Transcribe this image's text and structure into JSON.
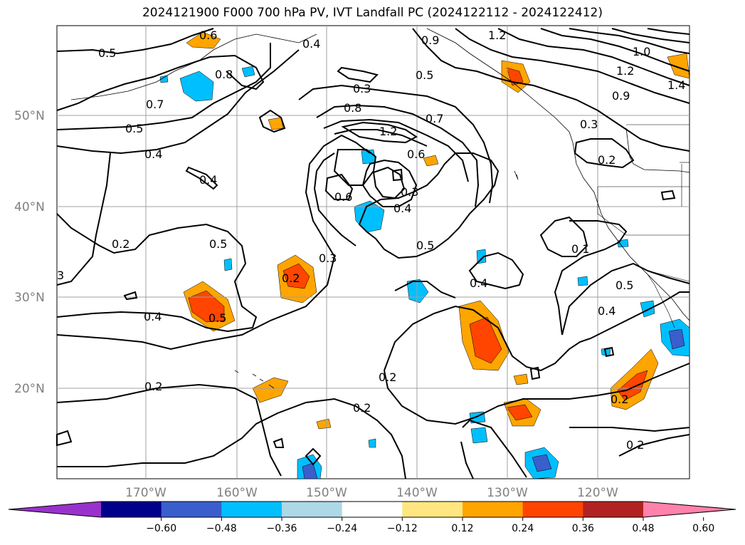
{
  "title": "2024121900 F000 700 hPa PV, IVT Landfall PC (2024122112 - 2024122412)",
  "latitude_labels": [
    "50°N",
    "40°N",
    "30°N",
    "20°N"
  ],
  "longitude_labels": [
    "170°W",
    "160°W",
    "150°W",
    "140°W",
    "130°W",
    "120°W"
  ],
  "contour_labels": [
    "0.5",
    "0.6",
    "0.4",
    "0.7",
    "0.8",
    "0.5",
    "0.4",
    "0.4",
    "0.2",
    "0.5",
    "0.3",
    "0.2",
    "0.4",
    "0.5",
    "0.3",
    "0.8",
    "1.2",
    "0.7",
    "0.6",
    "0.6",
    "0.4",
    "0.3",
    "0.5",
    "0.4",
    "1.2",
    "0.9",
    "0.5",
    "1.0",
    "1.2",
    "0.9",
    "1.4",
    "0.3",
    "0.2",
    "0.1",
    "0.5",
    "0.4",
    "0.2",
    "0.2",
    "0.2",
    "0.2",
    "0.2",
    "3"
  ],
  "colorbar": {
    "ticks": [
      "−0.60",
      "−0.48",
      "−0.36",
      "−0.24",
      "−0.12",
      "0.12",
      "0.24",
      "0.36",
      "0.48",
      "0.60"
    ],
    "colors": [
      "#9932cc",
      "#00008b",
      "#3a5fcd",
      "#00bfff",
      "#add8e6",
      "#ffffff",
      "#ffe680",
      "#ffa500",
      "#ff4500",
      "#b22222",
      "#ff82ab"
    ]
  }
}
